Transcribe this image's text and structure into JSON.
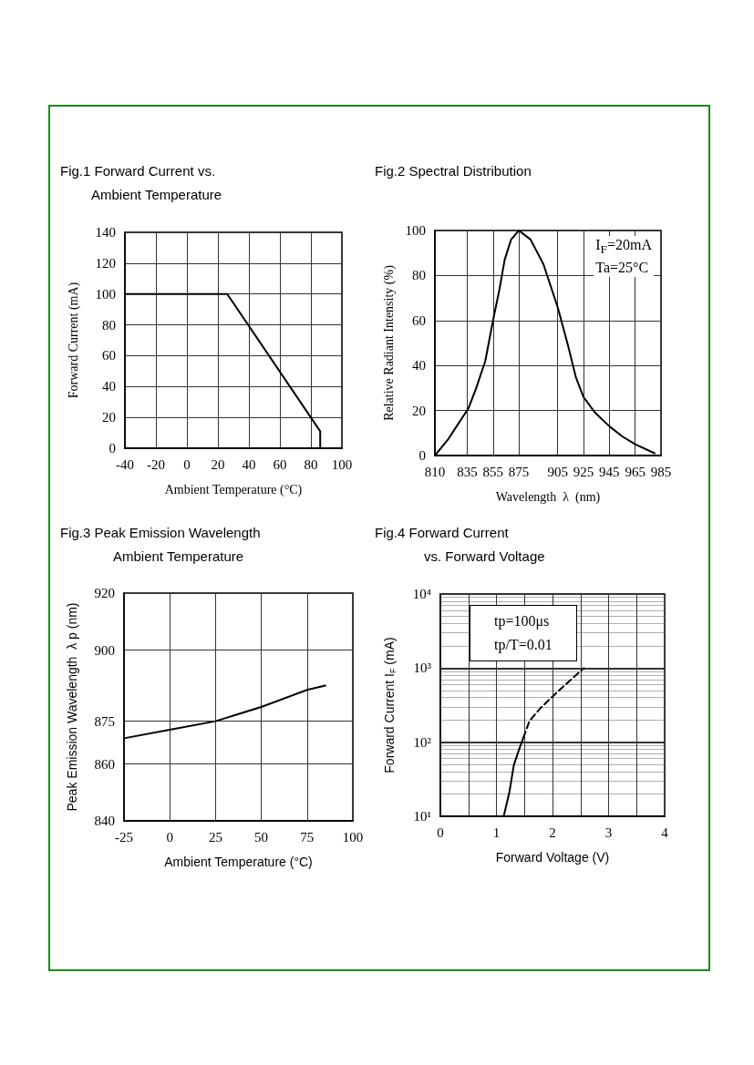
{
  "chart_data": [
    {
      "type": "line",
      "title": "Fig.1 Forward Current vs.\nAmbient Temperature",
      "xlabel": "Ambient Temperature (°C)",
      "ylabel": "Forward Current (mA)",
      "x": [
        -40,
        26,
        86,
        86
      ],
      "values": [
        100,
        100,
        11,
        0
      ],
      "color": "#000000",
      "xlim": [
        -40,
        100
      ],
      "ylim": [
        0,
        140
      ],
      "xticks": [
        -40,
        -20,
        0,
        20,
        40,
        60,
        80,
        100
      ],
      "yticks": [
        0,
        20,
        40,
        60,
        80,
        100,
        120,
        140
      ],
      "grid": true,
      "marker": "none"
    },
    {
      "type": "line",
      "title": "Fig.2 Spectral Distribution",
      "xlabel": "Wavelength  λ  (nm)",
      "ylabel": "Relative Radiant Intensity (%)",
      "annotations": [
        "I$_{F}$=20mA",
        "Ta=25°C"
      ],
      "x": [
        810,
        820,
        828,
        836,
        842,
        849,
        855,
        860,
        864,
        869,
        875,
        884,
        894,
        905,
        913,
        919,
        925,
        934,
        945,
        955,
        965,
        980
      ],
      "values": [
        0,
        7,
        14,
        21,
        30,
        42,
        60,
        74,
        87,
        96,
        100,
        96,
        85,
        66,
        49,
        35,
        26,
        19,
        13,
        8.5,
        5,
        1
      ],
      "color": "#000000",
      "xlim": [
        810,
        985
      ],
      "ylim": [
        0,
        100
      ],
      "xticks": [
        810,
        835,
        855,
        875,
        905,
        925,
        945,
        965,
        985
      ],
      "yticks": [
        0,
        20,
        40,
        60,
        80,
        100
      ],
      "grid": true,
      "marker": "none"
    },
    {
      "type": "line",
      "title": "Fig.3    Peak Emission Wavelength\nAmbient Temperature",
      "xlabel": "Ambient Temperature (°C)",
      "ylabel": "Peak Emission Wavelength  λ p (nm)",
      "x": [
        -25,
        0,
        25,
        50,
        75,
        85
      ],
      "values": [
        869,
        872,
        875,
        880,
        886,
        887.5
      ],
      "color": "#000000",
      "xlim": [
        -25,
        100
      ],
      "ylim": [
        840,
        920
      ],
      "xticks": [
        -25,
        0,
        25,
        50,
        75,
        100
      ],
      "yticks": [
        840,
        860,
        875,
        900,
        920
      ],
      "grid": true,
      "marker": "none"
    },
    {
      "type": "line",
      "title": "Fig.4    Forward Current\nvs. Forward Voltage",
      "xlabel": "Forward Voltage (V)",
      "ylabel": "Forward Current I$_{F}$ (mA)",
      "annotations": [
        "tp=100μs",
        "tp/T=0.01"
      ],
      "log": "y",
      "series": [
        {
          "color": "#000000",
          "line_style": "solid",
          "x": [
            1.13,
            1.23,
            1.31,
            1.4,
            1.48
          ],
          "values": [
            10,
            21,
            49,
            78,
            115
          ]
        },
        {
          "color": "#000000",
          "line_style": "dashed",
          "x": [
            1.48,
            1.59,
            1.8,
            2.02,
            2.29,
            2.56
          ],
          "values": [
            115,
            194,
            296,
            426,
            657,
            1000
          ]
        }
      ],
      "xlim": [
        0,
        4
      ],
      "ylim": [
        10,
        10000
      ],
      "xticks": [
        0,
        {
          "value": 0.5,
          "label": null
        },
        1,
        {
          "value": 1.5,
          "label": null
        },
        2,
        {
          "value": 2.5,
          "label": null
        },
        3,
        {
          "value": 3.5,
          "label": null
        },
        4
      ],
      "yticks": [
        {
          "value": 10,
          "label": "10¹"
        },
        {
          "value": 100,
          "label": "10²"
        },
        {
          "value": 1000,
          "label": "10³"
        },
        {
          "value": 10000,
          "label": "10⁴"
        }
      ],
      "grid": true,
      "marker": "none"
    }
  ]
}
